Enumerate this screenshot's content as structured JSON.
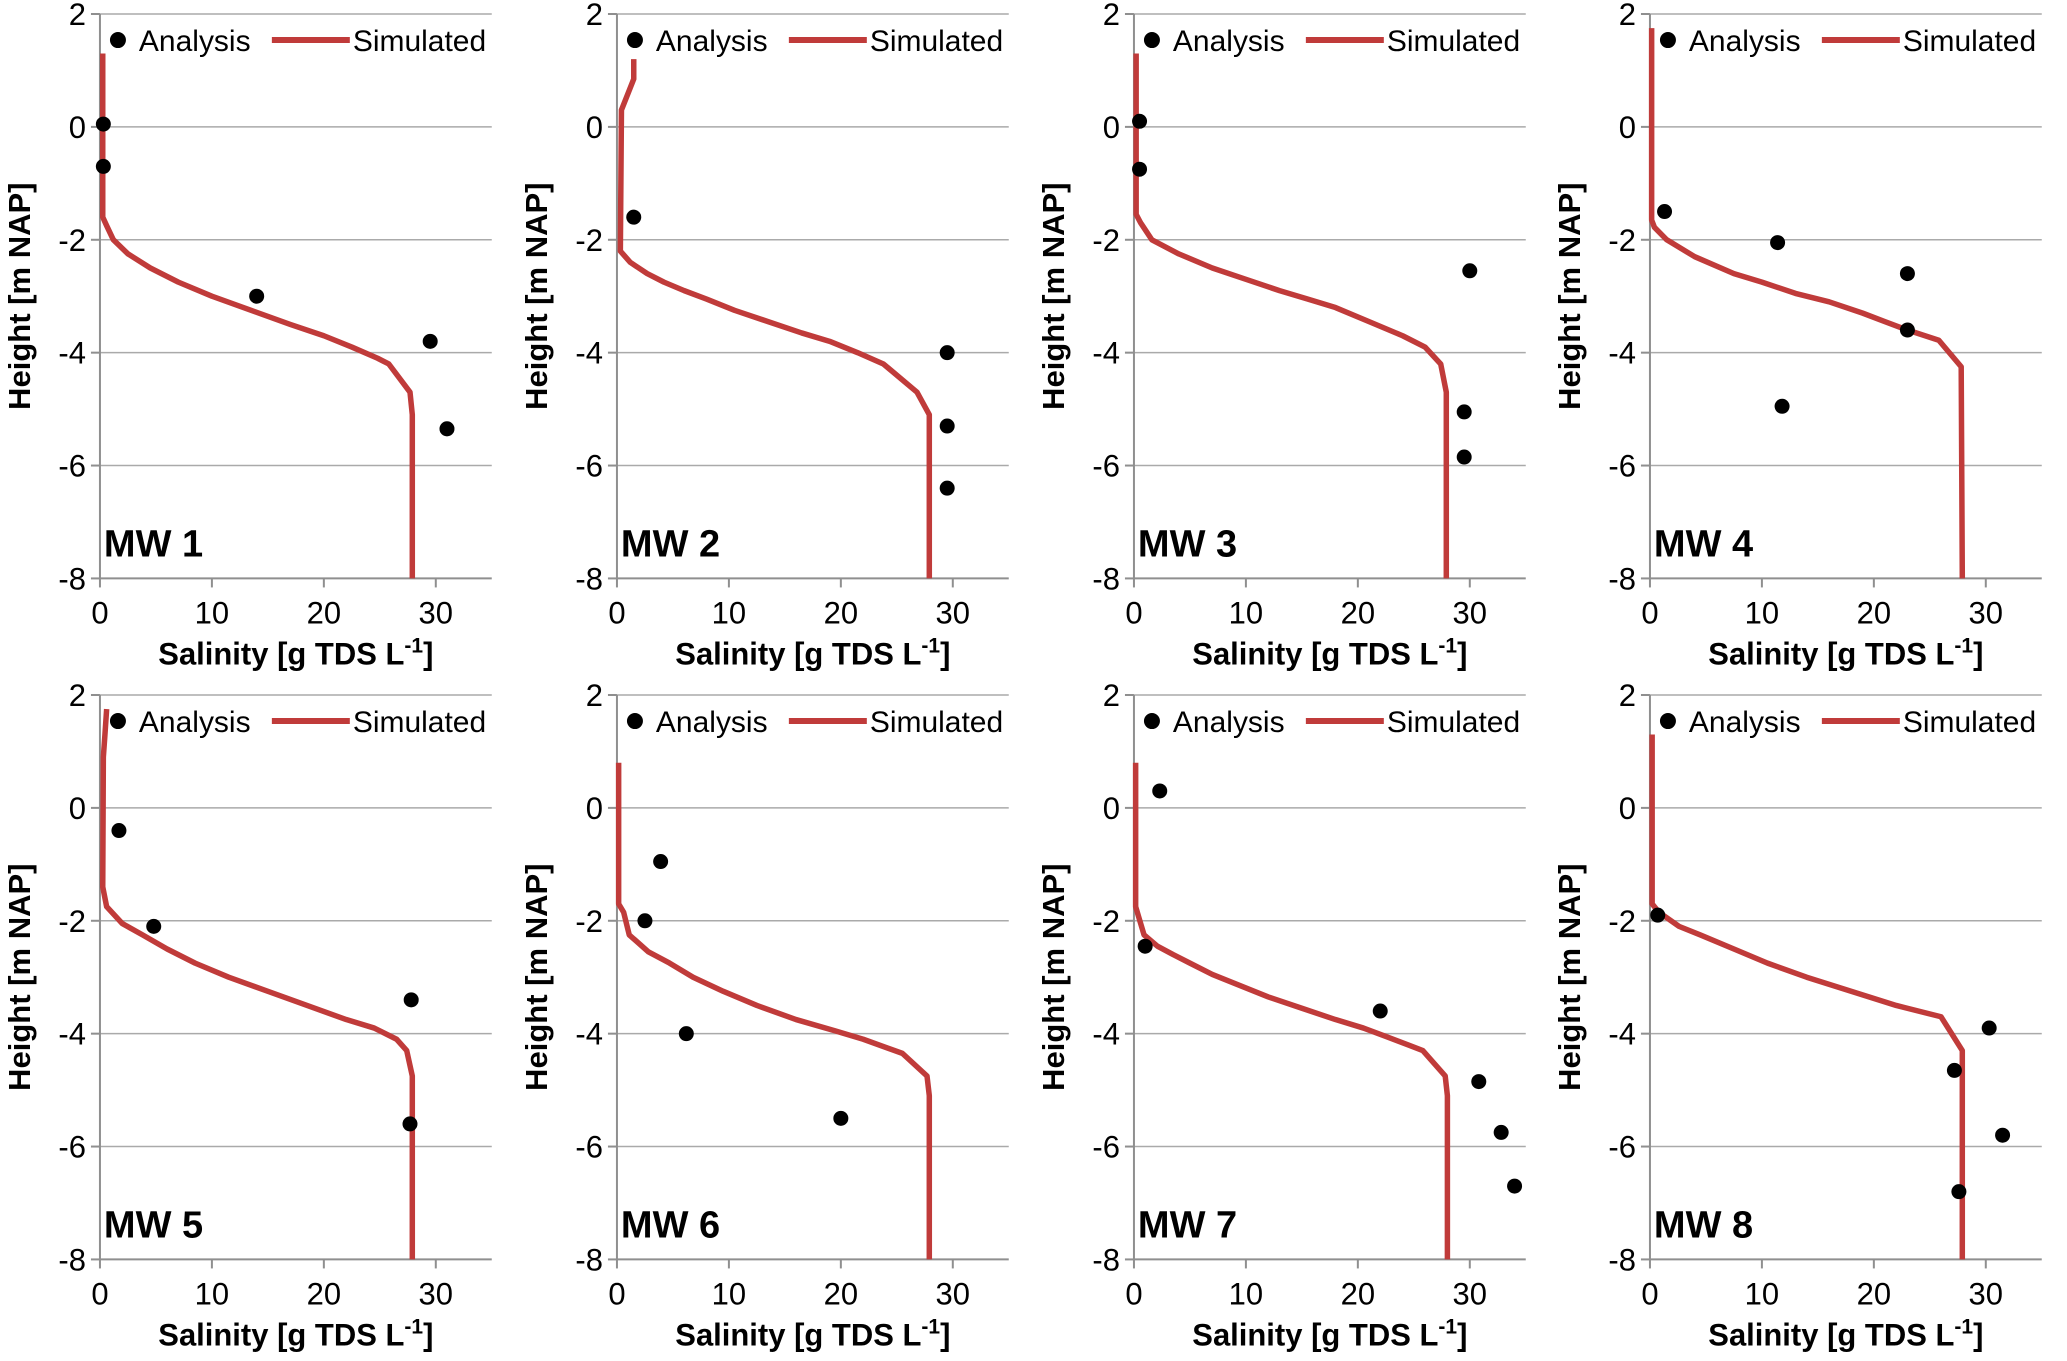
{
  "figure": {
    "description": "Grid of 8 vertical salinity profile charts comparing analysed samples with simulated profiles at monitoring wells MW 1 to MW 8",
    "legend": {
      "analysis": "Analysis",
      "simulated": "Simulated"
    },
    "colors": {
      "background": "#ffffff",
      "simulated_line": "#c03b3a",
      "analysis_dot": "#000000",
      "gridline": "#aaaaaa",
      "axis": "#8f8f8f",
      "text": "#000000"
    },
    "axes": {
      "ylabel": "Height [m NAP]",
      "xlabel_main": "Salinity [g TDS L",
      "xlabel_sup": "-1",
      "xlabel_close": "]",
      "x_ticks": [
        0,
        10,
        20,
        30
      ],
      "y_ticks": [
        2,
        0,
        -2,
        -4,
        -6,
        -8
      ],
      "xlim": [
        0,
        35
      ],
      "ylim": [
        -8,
        2
      ],
      "grid": "horizontal only",
      "legend_position": "top inside"
    }
  },
  "chart_data": [
    {
      "type": "line",
      "title": "MW 1",
      "xlabel": "Salinity [g TDS L-1]",
      "ylabel": "Height [m NAP]",
      "xlim": [
        0,
        35
      ],
      "ylim": [
        -8,
        2
      ],
      "analysis_points": [
        [
          0.3,
          0.05
        ],
        [
          0.3,
          -0.7
        ],
        [
          14,
          -3.0
        ],
        [
          29.5,
          -3.8
        ],
        [
          31,
          -5.35
        ]
      ],
      "simulated_line": [
        [
          0.25,
          1.3
        ],
        [
          0.25,
          -1.6
        ],
        [
          0.6,
          -1.75
        ],
        [
          1.2,
          -2.0
        ],
        [
          2.5,
          -2.25
        ],
        [
          4.5,
          -2.5
        ],
        [
          7,
          -2.75
        ],
        [
          10,
          -3.0
        ],
        [
          13.5,
          -3.25
        ],
        [
          17,
          -3.5
        ],
        [
          20,
          -3.7
        ],
        [
          22.5,
          -3.9
        ],
        [
          24.8,
          -4.1
        ],
        [
          25.8,
          -4.2
        ],
        [
          27.7,
          -4.7
        ],
        [
          27.9,
          -5.1
        ],
        [
          27.9,
          -8
        ]
      ]
    },
    {
      "type": "line",
      "title": "MW 2",
      "xlabel": "Salinity [g TDS L-1]",
      "ylabel": "Height [m NAP]",
      "xlim": [
        0,
        35
      ],
      "ylim": [
        -8,
        2
      ],
      "analysis_points": [
        [
          1.5,
          -1.6
        ],
        [
          29.5,
          -4.0
        ],
        [
          29.5,
          -5.3
        ],
        [
          29.5,
          -6.4
        ]
      ],
      "simulated_line": [
        [
          1.5,
          1.2
        ],
        [
          1.5,
          0.85
        ],
        [
          0.4,
          0.3
        ],
        [
          0.3,
          -2.2
        ],
        [
          1.2,
          -2.4
        ],
        [
          2.7,
          -2.6
        ],
        [
          4.2,
          -2.75
        ],
        [
          6,
          -2.9
        ],
        [
          8,
          -3.05
        ],
        [
          10.5,
          -3.25
        ],
        [
          13.5,
          -3.45
        ],
        [
          16.5,
          -3.65
        ],
        [
          19,
          -3.8
        ],
        [
          21.5,
          -4.0
        ],
        [
          23.8,
          -4.2
        ],
        [
          26.8,
          -4.7
        ],
        [
          27.9,
          -5.1
        ],
        [
          27.9,
          -8
        ]
      ]
    },
    {
      "type": "line",
      "title": "MW 3",
      "xlabel": "Salinity [g TDS L-1]",
      "ylabel": "Height [m NAP]",
      "xlim": [
        0,
        35
      ],
      "ylim": [
        -8,
        2
      ],
      "analysis_points": [
        [
          0.5,
          0.1
        ],
        [
          0.5,
          -0.75
        ],
        [
          30,
          -2.55
        ],
        [
          29.5,
          -5.05
        ],
        [
          29.5,
          -5.85
        ]
      ],
      "simulated_line": [
        [
          0.2,
          1.3
        ],
        [
          0.2,
          -1.55
        ],
        [
          0.6,
          -1.7
        ],
        [
          1.6,
          -2.0
        ],
        [
          4,
          -2.25
        ],
        [
          7,
          -2.5
        ],
        [
          10,
          -2.7
        ],
        [
          13,
          -2.9
        ],
        [
          15.5,
          -3.05
        ],
        [
          18,
          -3.2
        ],
        [
          21,
          -3.45
        ],
        [
          24,
          -3.7
        ],
        [
          26,
          -3.9
        ],
        [
          27.4,
          -4.2
        ],
        [
          27.9,
          -4.7
        ],
        [
          27.9,
          -8
        ]
      ]
    },
    {
      "type": "line",
      "title": "MW 4",
      "xlabel": "Salinity [g TDS L-1]",
      "ylabel": "Height [m NAP]",
      "xlim": [
        0,
        35
      ],
      "ylim": [
        -8,
        2
      ],
      "analysis_points": [
        [
          1.3,
          -1.5
        ],
        [
          11.4,
          -2.05
        ],
        [
          23,
          -2.6
        ],
        [
          23,
          -3.6
        ],
        [
          11.8,
          -4.95
        ]
      ],
      "simulated_line": [
        [
          0.15,
          1.75
        ],
        [
          0.15,
          -1.65
        ],
        [
          0.4,
          -1.78
        ],
        [
          1.5,
          -2.0
        ],
        [
          4,
          -2.3
        ],
        [
          7.5,
          -2.6
        ],
        [
          10,
          -2.75
        ],
        [
          13,
          -2.95
        ],
        [
          16,
          -3.1
        ],
        [
          19,
          -3.3
        ],
        [
          21,
          -3.45
        ],
        [
          23,
          -3.6
        ],
        [
          25.8,
          -3.78
        ],
        [
          27.8,
          -4.25
        ],
        [
          27.9,
          -8
        ]
      ]
    },
    {
      "type": "line",
      "title": "MW 5",
      "xlabel": "Salinity [g TDS L-1]",
      "ylabel": "Height [m NAP]",
      "xlim": [
        0,
        35
      ],
      "ylim": [
        -8,
        2
      ],
      "analysis_points": [
        [
          1.7,
          -0.4
        ],
        [
          4.8,
          -2.1
        ],
        [
          27.8,
          -3.4
        ],
        [
          27.7,
          -5.6
        ]
      ],
      "simulated_line": [
        [
          0.6,
          1.75
        ],
        [
          0.45,
          1.3
        ],
        [
          0.3,
          0.9
        ],
        [
          0.25,
          -1.4
        ],
        [
          0.6,
          -1.75
        ],
        [
          2,
          -2.05
        ],
        [
          3.8,
          -2.25
        ],
        [
          6,
          -2.5
        ],
        [
          8.5,
          -2.75
        ],
        [
          11.5,
          -3.0
        ],
        [
          15,
          -3.25
        ],
        [
          18.5,
          -3.5
        ],
        [
          22,
          -3.75
        ],
        [
          24.5,
          -3.9
        ],
        [
          26.5,
          -4.1
        ],
        [
          27.4,
          -4.3
        ],
        [
          27.9,
          -4.75
        ],
        [
          27.9,
          -8
        ]
      ]
    },
    {
      "type": "line",
      "title": "MW 6",
      "xlabel": "Salinity [g TDS L-1]",
      "ylabel": "Height [m NAP]",
      "xlim": [
        0,
        35
      ],
      "ylim": [
        -8,
        2
      ],
      "analysis_points": [
        [
          3.9,
          -0.95
        ],
        [
          2.5,
          -2.0
        ],
        [
          6.2,
          -4.0
        ],
        [
          20,
          -5.5
        ]
      ],
      "simulated_line": [
        [
          0.15,
          0.8
        ],
        [
          0.15,
          -1.7
        ],
        [
          0.6,
          -1.85
        ],
        [
          1.1,
          -2.25
        ],
        [
          2.8,
          -2.55
        ],
        [
          4.7,
          -2.75
        ],
        [
          6.8,
          -3.0
        ],
        [
          9.5,
          -3.25
        ],
        [
          12.5,
          -3.5
        ],
        [
          16,
          -3.75
        ],
        [
          19.5,
          -3.95
        ],
        [
          22,
          -4.1
        ],
        [
          25.5,
          -4.35
        ],
        [
          27.7,
          -4.75
        ],
        [
          27.9,
          -5.1
        ],
        [
          27.9,
          -8
        ]
      ]
    },
    {
      "type": "line",
      "title": "MW 7",
      "xlabel": "Salinity [g TDS L-1]",
      "ylabel": "Height [m NAP]",
      "xlim": [
        0,
        35
      ],
      "ylim": [
        -8,
        2
      ],
      "analysis_points": [
        [
          2.3,
          0.3
        ],
        [
          1.0,
          -2.45
        ],
        [
          22,
          -3.6
        ],
        [
          30.8,
          -4.85
        ],
        [
          32.8,
          -5.75
        ],
        [
          34,
          -6.7
        ]
      ],
      "simulated_line": [
        [
          0.15,
          0.8
        ],
        [
          0.15,
          -1.75
        ],
        [
          0.9,
          -2.25
        ],
        [
          2.1,
          -2.45
        ],
        [
          3.5,
          -2.6
        ],
        [
          5,
          -2.75
        ],
        [
          7,
          -2.95
        ],
        [
          9.5,
          -3.15
        ],
        [
          12,
          -3.35
        ],
        [
          15,
          -3.55
        ],
        [
          18,
          -3.75
        ],
        [
          20.5,
          -3.9
        ],
        [
          22.5,
          -4.05
        ],
        [
          24.5,
          -4.2
        ],
        [
          25.8,
          -4.3
        ],
        [
          27.8,
          -4.75
        ],
        [
          28,
          -5.1
        ],
        [
          28,
          -8
        ]
      ]
    },
    {
      "type": "line",
      "title": "MW 8",
      "xlabel": "Salinity [g TDS L-1]",
      "ylabel": "Height [m NAP]",
      "xlim": [
        0,
        35
      ],
      "ylim": [
        -8,
        2
      ],
      "analysis_points": [
        [
          0.7,
          -1.9
        ],
        [
          30.3,
          -3.9
        ],
        [
          27.2,
          -4.65
        ],
        [
          31.5,
          -5.8
        ],
        [
          27.6,
          -6.8
        ]
      ],
      "simulated_line": [
        [
          0.2,
          1.3
        ],
        [
          0.2,
          -1.7
        ],
        [
          0.8,
          -1.85
        ],
        [
          2.6,
          -2.1
        ],
        [
          4.5,
          -2.25
        ],
        [
          7.5,
          -2.5
        ],
        [
          10.5,
          -2.75
        ],
        [
          14,
          -3.0
        ],
        [
          18,
          -3.25
        ],
        [
          22,
          -3.5
        ],
        [
          26,
          -3.7
        ],
        [
          27.9,
          -4.3
        ],
        [
          27.9,
          -8
        ]
      ]
    }
  ]
}
